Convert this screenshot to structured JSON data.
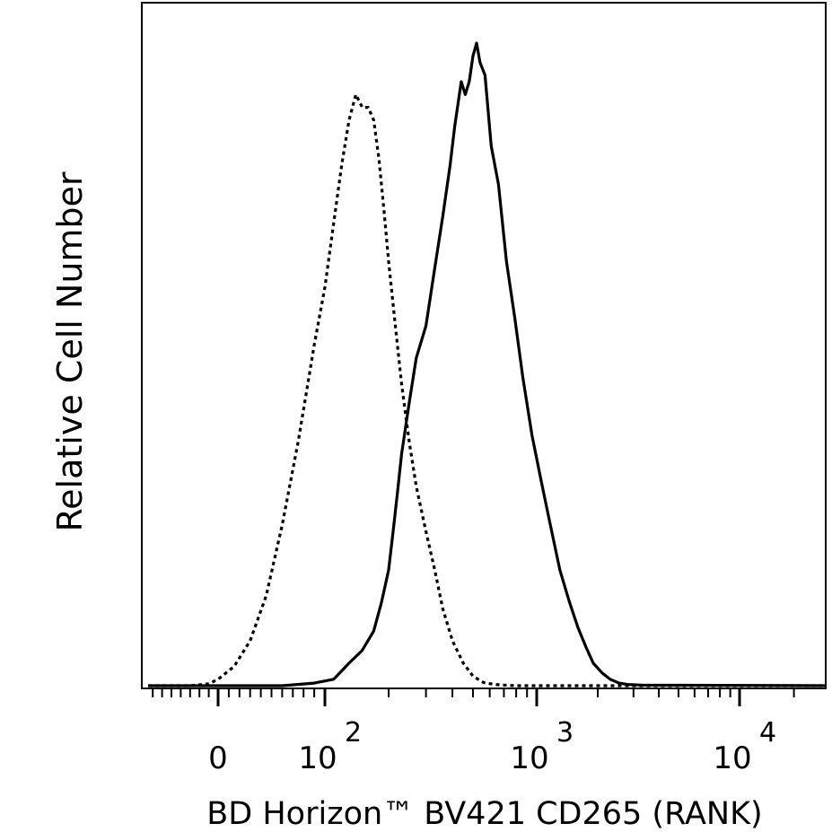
{
  "chart_data": {
    "type": "line",
    "xlabel": "BD Horizon™ BV421 CD265 (RANK)",
    "ylabel": "Relative Cell Number",
    "x_scale": "biexponential",
    "x_ticks": [
      {
        "value": 0,
        "base": "0",
        "exp": ""
      },
      {
        "value": 100,
        "base": "10",
        "exp": "2"
      },
      {
        "value": 1000,
        "base": "10",
        "exp": "3"
      },
      {
        "value": 10000,
        "base": "10",
        "exp": "4"
      }
    ],
    "xlim": [
      -150,
      30000
    ],
    "ylim": [
      0,
      1
    ],
    "grid": false,
    "legend": "none",
    "series": [
      {
        "style": "dotted",
        "color": "#000000",
        "x": [
          -150,
          -60,
          -20,
          0,
          15,
          30,
          45,
          60,
          75,
          90,
          100,
          110,
          120,
          130,
          140,
          150,
          160,
          170,
          180,
          190,
          200,
          215,
          230,
          250,
          270,
          300,
          330,
          360,
          400,
          450,
          500,
          560,
          630,
          700,
          800,
          30000
        ],
        "y": [
          0,
          0,
          0.003,
          0.01,
          0.03,
          0.07,
          0.14,
          0.25,
          0.38,
          0.53,
          0.62,
          0.72,
          0.81,
          0.88,
          0.92,
          0.9,
          0.9,
          0.88,
          0.82,
          0.74,
          0.66,
          0.56,
          0.47,
          0.38,
          0.31,
          0.24,
          0.18,
          0.12,
          0.07,
          0.035,
          0.015,
          0.005,
          0.002,
          0.001,
          0,
          0
        ]
      },
      {
        "style": "solid",
        "color": "#000000",
        "x": [
          -150,
          0,
          60,
          90,
          110,
          130,
          150,
          170,
          185,
          200,
          210,
          220,
          230,
          250,
          270,
          300,
          330,
          360,
          390,
          410,
          440,
          460,
          480,
          500,
          520,
          540,
          570,
          610,
          660,
          720,
          790,
          860,
          950,
          1050,
          1150,
          1300,
          1450,
          1600,
          1750,
          1900,
          2100,
          2300,
          2550,
          2800,
          3300,
          30000
        ],
        "y": [
          0,
          0,
          0,
          0.004,
          0.01,
          0.035,
          0.055,
          0.085,
          0.13,
          0.18,
          0.24,
          0.3,
          0.36,
          0.44,
          0.51,
          0.56,
          0.65,
          0.73,
          0.81,
          0.87,
          0.94,
          0.92,
          0.94,
          0.98,
          1.0,
          0.97,
          0.95,
          0.84,
          0.78,
          0.66,
          0.57,
          0.48,
          0.39,
          0.32,
          0.26,
          0.18,
          0.13,
          0.09,
          0.06,
          0.035,
          0.02,
          0.01,
          0.004,
          0.002,
          0.001,
          0
        ]
      }
    ]
  }
}
